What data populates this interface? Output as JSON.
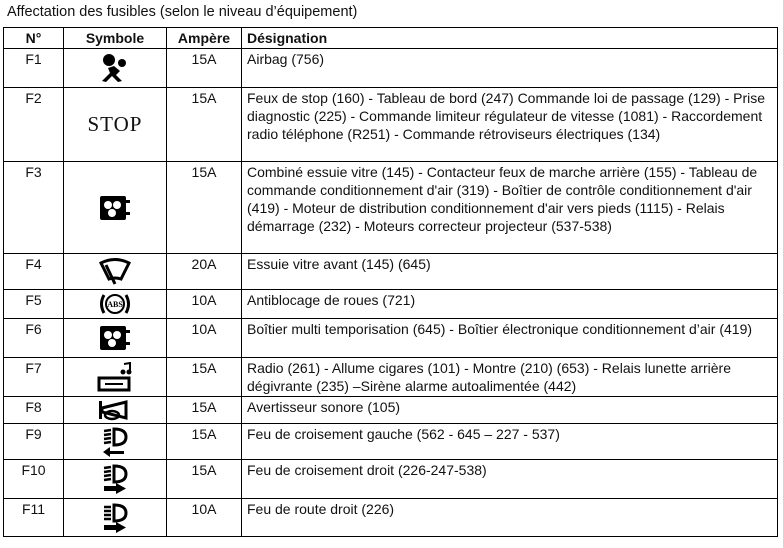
{
  "title": "Affectation des fusibles (selon le niveau d’équipement)",
  "headers": {
    "n": "N°",
    "symbole": "Symbole",
    "ampere": "Ampère",
    "designation": "Désignation"
  },
  "rows": [
    {
      "n": "F1",
      "icon": "airbag-icon",
      "ampere": "15A",
      "designation": "Airbag (756)"
    },
    {
      "n": "F2",
      "icon": "stop-text",
      "symbol_text": "STOP",
      "ampere": "15A",
      "designation": "Feux de stop (160) - Tableau de bord (247) Commande loi de passage (129) - Prise diagnostic (225) - Commande limiteur régulateur de vitesse (1081) - Raccordement radio téléphone (R251) - Commande rétroviseurs électriques (134)"
    },
    {
      "n": "F3",
      "icon": "fan-heater-icon",
      "ampere": "15A",
      "designation": "Combiné essuie vitre (145) - Contacteur feux de marche arrière (155) - Tableau de commande conditionnement d'air (319) - Boîtier de contrôle conditionnement d'air (419) - Moteur de distribution conditionnement d'air vers pieds (1115) - Relais démarrage (232) - Moteurs correcteur projecteur (537-538)"
    },
    {
      "n": "F4",
      "icon": "windshield-wiper-icon",
      "ampere": "20A",
      "designation": "Essuie vitre avant (145) (645)"
    },
    {
      "n": "F5",
      "icon": "abs-icon",
      "symbol_text": "ABS",
      "ampere": "10A",
      "designation": "Antiblocage de roues (721)"
    },
    {
      "n": "F6",
      "icon": "fan-heater-icon",
      "ampere": "10A",
      "designation": "Boîtier multi temporisation (645) - Boîtier électronique conditionnement d’air (419)"
    },
    {
      "n": "F7",
      "icon": "radio-icon",
      "ampere": "15A",
      "designation": "Radio (261) - Allume cigares (101) - Montre (210) (653) - Relais lunette arrière dégivrante (235) –Sirène alarme autoalimentée (442)"
    },
    {
      "n": "F8",
      "icon": "horn-icon",
      "ampere": "15A",
      "designation": "Avertisseur sonore (105)"
    },
    {
      "n": "F9",
      "icon": "low-beam-left-icon",
      "ampere": "15A",
      "designation": "Feu de croisement gauche (562 - 645 – 227 - 537)"
    },
    {
      "n": "F10",
      "icon": "low-beam-right-icon",
      "ampere": "15A",
      "designation": "Feu de croisement droit (226-247-538)"
    },
    {
      "n": "F11",
      "icon": "high-beam-right-icon",
      "ampere": "10A",
      "designation": "Feu de route droit (226)"
    }
  ]
}
